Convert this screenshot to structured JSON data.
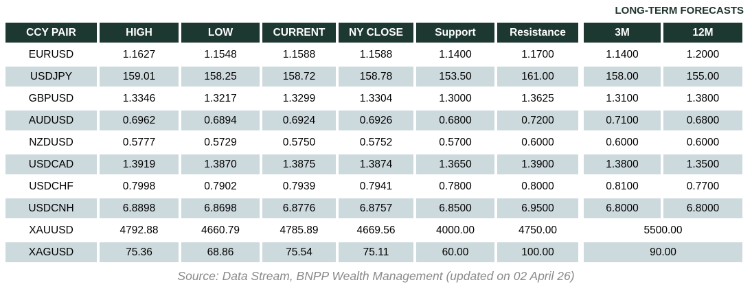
{
  "forecast_group_label": "LONG-TERM FORECASTS",
  "table": {
    "columns": [
      "CCY PAIR",
      "HIGH",
      "LOW",
      "CURRENT",
      "NY CLOSE",
      "Support",
      "Resistance",
      "3M",
      "12M"
    ],
    "rows": [
      {
        "pair": "EURUSD",
        "high": "1.1627",
        "low": "1.1548",
        "current": "1.1588",
        "ny_close": "1.1588",
        "support": "1.1400",
        "resistance": "1.1700",
        "m3": "1.1400",
        "m12": "1.2000"
      },
      {
        "pair": "USDJPY",
        "high": "159.01",
        "low": "158.25",
        "current": "158.72",
        "ny_close": "158.78",
        "support": "153.50",
        "resistance": "161.00",
        "m3": "158.00",
        "m12": "155.00"
      },
      {
        "pair": "GBPUSD",
        "high": "1.3346",
        "low": "1.3217",
        "current": "1.3299",
        "ny_close": "1.3304",
        "support": "1.3000",
        "resistance": "1.3625",
        "m3": "1.3100",
        "m12": "1.3800"
      },
      {
        "pair": "AUDUSD",
        "high": "0.6962",
        "low": "0.6894",
        "current": "0.6924",
        "ny_close": "0.6926",
        "support": "0.6800",
        "resistance": "0.7200",
        "m3": "0.7100",
        "m12": "0.6800"
      },
      {
        "pair": "NZDUSD",
        "high": "0.5777",
        "low": "0.5729",
        "current": "0.5750",
        "ny_close": "0.5752",
        "support": "0.5700",
        "resistance": "0.6000",
        "m3": "0.6000",
        "m12": "0.6000"
      },
      {
        "pair": "USDCAD",
        "high": "1.3919",
        "low": "1.3870",
        "current": "1.3875",
        "ny_close": "1.3874",
        "support": "1.3650",
        "resistance": "1.3900",
        "m3": "1.3800",
        "m12": "1.3500"
      },
      {
        "pair": "USDCHF",
        "high": "0.7998",
        "low": "0.7902",
        "current": "0.7939",
        "ny_close": "0.7941",
        "support": "0.7800",
        "resistance": "0.8000",
        "m3": "0.8100",
        "m12": "0.7700"
      },
      {
        "pair": "USDCNH",
        "high": "6.8898",
        "low": "6.8698",
        "current": "6.8776",
        "ny_close": "6.8757",
        "support": "6.8500",
        "resistance": "6.9500",
        "m3": "6.8000",
        "m12": "6.8000"
      },
      {
        "pair": "XAUUSD",
        "high": "4792.88",
        "low": "4660.79",
        "current": "4785.89",
        "ny_close": "4669.56",
        "support": "4000.00",
        "resistance": "4750.00",
        "forecast": "5500.00"
      },
      {
        "pair": "XAGUSD",
        "high": "75.36",
        "low": "68.86",
        "current": "75.54",
        "ny_close": "75.11",
        "support": "60.00",
        "resistance": "100.00",
        "forecast": "90.00"
      }
    ]
  },
  "source": "Source: Data Stream, BNPP Wealth Management (updated on 02 April 26)",
  "colors": {
    "header_background": "#1d3731",
    "header_text": "#ffffff",
    "alt_row_background": "#ccd9dd",
    "body_text": "#000000",
    "forecast_label_text": "#1c332e",
    "source_text": "#8a8a8a",
    "page_background": "#ffffff"
  },
  "chart_data": {
    "type": "table",
    "title": "LONG-TERM FORECASTS",
    "columns": [
      "CCY PAIR",
      "HIGH",
      "LOW",
      "CURRENT",
      "NY CLOSE",
      "Support",
      "Resistance",
      "3M",
      "12M"
    ],
    "rows": [
      [
        "EURUSD",
        1.1627,
        1.1548,
        1.1588,
        1.1588,
        1.14,
        1.17,
        1.14,
        1.2
      ],
      [
        "USDJPY",
        159.01,
        158.25,
        158.72,
        158.78,
        153.5,
        161.0,
        158.0,
        155.0
      ],
      [
        "GBPUSD",
        1.3346,
        1.3217,
        1.3299,
        1.3304,
        1.3,
        1.3625,
        1.31,
        1.38
      ],
      [
        "AUDUSD",
        0.6962,
        0.6894,
        0.6924,
        0.6926,
        0.68,
        0.72,
        0.71,
        0.68
      ],
      [
        "NZDUSD",
        0.5777,
        0.5729,
        0.575,
        0.5752,
        0.57,
        0.6,
        0.6,
        0.6
      ],
      [
        "USDCAD",
        1.3919,
        1.387,
        1.3875,
        1.3874,
        1.365,
        1.39,
        1.38,
        1.35
      ],
      [
        "USDCHF",
        0.7998,
        0.7902,
        0.7939,
        0.7941,
        0.78,
        0.8,
        0.81,
        0.77
      ],
      [
        "USDCNH",
        6.8898,
        6.8698,
        6.8776,
        6.8757,
        6.85,
        6.95,
        6.8,
        6.8
      ],
      [
        "XAUUSD",
        4792.88,
        4660.79,
        4785.89,
        4669.56,
        4000.0,
        4750.0,
        5500.0,
        5500.0
      ],
      [
        "XAGUSD",
        75.36,
        68.86,
        75.54,
        75.11,
        60.0,
        100.0,
        90.0,
        90.0
      ]
    ],
    "notes": "3M and 12M forecast cells are merged into a single value for XAUUSD (5500.00) and XAGUSD (90.00). Rows alternate white and light blue-gray shading.",
    "annotation": "Source: Data Stream, BNPP Wealth Management (updated on 02 April 26)"
  }
}
